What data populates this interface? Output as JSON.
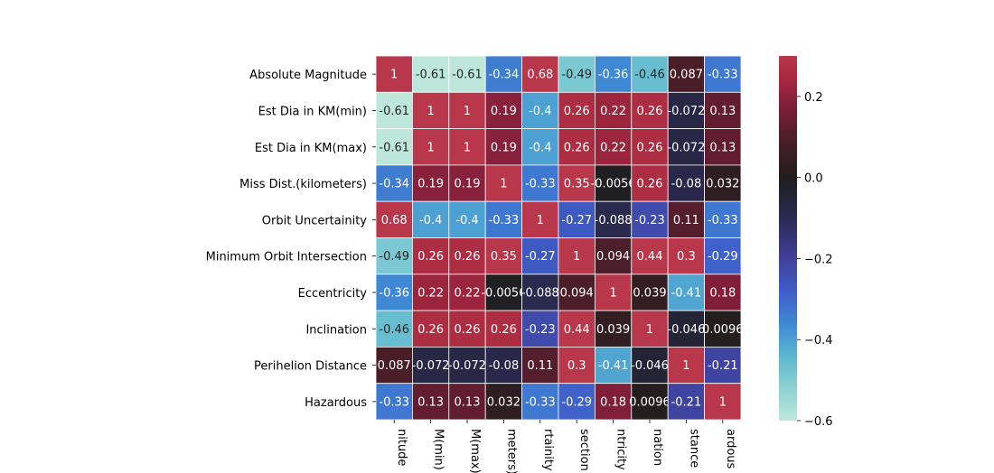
{
  "chart_data": {
    "type": "heatmap",
    "rows": [
      "Absolute Magnitude",
      "Est Dia in KM(min)",
      "Est Dia in KM(max)",
      "Miss Dist.(kilometers)",
      "Orbit Uncertainity",
      "Minimum Orbit Intersection",
      "Eccentricity",
      "Inclination",
      "Perihelion Distance",
      "Hazardous"
    ],
    "columns_visible_text": [
      "nitude",
      "M(min)",
      "M(max)",
      "meters)",
      "rtainity",
      "section",
      "ntricity",
      "nation",
      "stance",
      "ardous"
    ],
    "values": [
      [
        1,
        -0.61,
        -0.61,
        -0.34,
        0.68,
        -0.49,
        -0.36,
        -0.46,
        0.087,
        -0.33
      ],
      [
        -0.61,
        1,
        1,
        0.19,
        -0.4,
        0.26,
        0.22,
        0.26,
        -0.072,
        0.13
      ],
      [
        -0.61,
        1,
        1,
        0.19,
        -0.4,
        0.26,
        0.22,
        0.26,
        -0.072,
        0.13
      ],
      [
        -0.34,
        0.19,
        0.19,
        1,
        -0.33,
        0.35,
        -0.0056,
        0.26,
        -0.08,
        0.032
      ],
      [
        0.68,
        -0.4,
        -0.4,
        -0.33,
        1,
        -0.27,
        -0.088,
        -0.23,
        0.11,
        -0.33
      ],
      [
        -0.49,
        0.26,
        0.26,
        0.35,
        -0.27,
        1,
        0.094,
        0.44,
        0.3,
        -0.29
      ],
      [
        -0.36,
        0.22,
        0.22,
        -0.0056,
        -0.088,
        0.094,
        1,
        0.039,
        -0.41,
        0.18
      ],
      [
        -0.46,
        0.26,
        0.26,
        0.26,
        -0.23,
        0.44,
        0.039,
        1,
        -0.046,
        0.0096
      ],
      [
        0.087,
        -0.072,
        -0.072,
        -0.08,
        0.11,
        0.3,
        -0.41,
        -0.046,
        1,
        -0.21
      ],
      [
        -0.33,
        0.13,
        0.13,
        0.032,
        -0.33,
        -0.29,
        0.18,
        0.0096,
        -0.21,
        1
      ]
    ],
    "annotations": [
      [
        "1",
        "-0.61",
        "-0.61",
        "-0.34",
        "0.68",
        "-0.49",
        "-0.36",
        "-0.46",
        "0.087",
        "-0.33"
      ],
      [
        "-0.61",
        "1",
        "1",
        "0.19",
        "-0.4",
        "0.26",
        "0.22",
        "0.26",
        "-0.072",
        "0.13"
      ],
      [
        "-0.61",
        "1",
        "1",
        "0.19",
        "-0.4",
        "0.26",
        "0.22",
        "0.26",
        "-0.072",
        "0.13"
      ],
      [
        "-0.34",
        "0.19",
        "0.19",
        "1",
        "-0.33",
        "0.35",
        "-0.0056",
        "0.26",
        "-0.08",
        "0.032"
      ],
      [
        "0.68",
        "-0.4",
        "-0.4",
        "-0.33",
        "1",
        "-0.27",
        "-0.088",
        "-0.23",
        "0.11",
        "-0.33"
      ],
      [
        "-0.49",
        "0.26",
        "0.26",
        "0.35",
        "-0.27",
        "1",
        "0.094",
        "0.44",
        "0.3",
        "-0.29"
      ],
      [
        "-0.36",
        "0.22",
        "0.22",
        "-0.0056",
        "-0.088",
        "0.094",
        "1",
        "0.039",
        "-0.41",
        "0.18"
      ],
      [
        "-0.46",
        "0.26",
        "0.26",
        "0.26",
        "-0.23",
        "0.44",
        "0.039",
        "1",
        "-0.046",
        "0.0096"
      ],
      [
        "0.087",
        "-0.072",
        "-0.072",
        "-0.08",
        "0.11",
        "0.3",
        "-0.41",
        "-0.046",
        "1",
        "-0.21"
      ],
      [
        "-0.33",
        "0.13",
        "0.13",
        "0.032",
        "-0.33",
        "-0.29",
        "0.18",
        "0.0096",
        "-0.21",
        "1"
      ]
    ],
    "colorbar": {
      "vmin": -0.6,
      "vmax": 0.3,
      "ticks": [
        0.2,
        0.0,
        -0.2,
        -0.4,
        -0.6
      ],
      "tick_labels": [
        "0.2",
        "0.0",
        "−0.2",
        "−0.4",
        "−0.6"
      ]
    },
    "colormap": "icefire",
    "colors": {
      "stops": [
        [
          -0.6,
          "#bde7db"
        ],
        [
          -0.52,
          "#8ed2d3"
        ],
        [
          -0.44,
          "#5ab7cf"
        ],
        [
          -0.36,
          "#3f88d4"
        ],
        [
          -0.28,
          "#3f5dc8"
        ],
        [
          -0.2,
          "#40409b"
        ],
        [
          -0.1,
          "#2b2a55"
        ],
        [
          0.0,
          "#1f1e1e"
        ],
        [
          0.1,
          "#4f1e2a"
        ],
        [
          0.18,
          "#811f3a"
        ],
        [
          0.24,
          "#a8283f"
        ],
        [
          0.3,
          "#b8374a"
        ]
      ],
      "text_dark": "#262626",
      "text_light": "#ffffff",
      "grid": "#ffffff"
    },
    "grid": false
  }
}
